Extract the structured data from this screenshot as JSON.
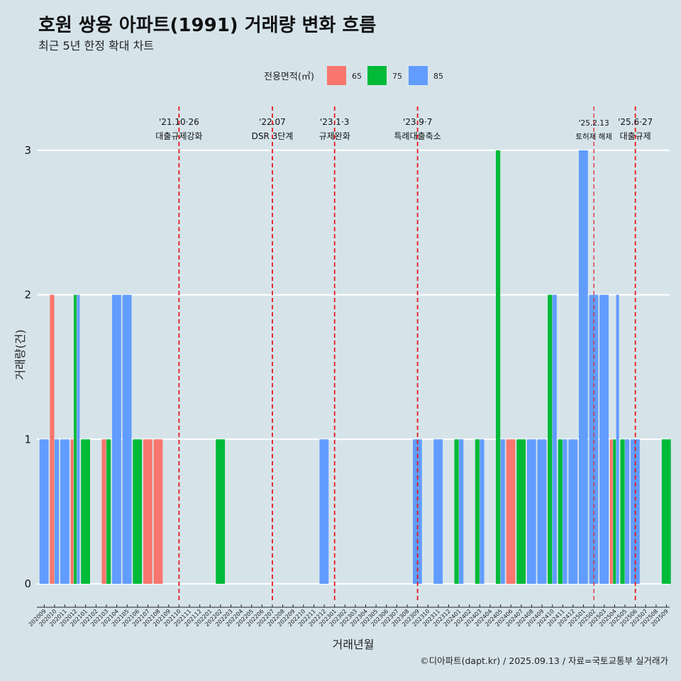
{
  "chart_data": {
    "type": "bar",
    "title": "호원 쌍용 아파트(1991) 거래량 변화 흐름",
    "subtitle": "최근 5년 한정 확대 차트",
    "xlabel": "거래년월",
    "ylabel": "거래량(건)",
    "ylim": [
      0,
      3
    ],
    "yticks": [
      0,
      1,
      2,
      3
    ],
    "grid": "horizontal",
    "legend": {
      "title": "전용면적(㎡)",
      "placement": "top",
      "entries": [
        {
          "label": "65",
          "color": "#f8766d"
        },
        {
          "label": "75",
          "color": "#00ba38"
        },
        {
          "label": "85",
          "color": "#619cff"
        }
      ]
    },
    "categories": [
      "202009",
      "202010",
      "202011",
      "202012",
      "202101",
      "202102",
      "202103",
      "202104",
      "202105",
      "202106",
      "202107",
      "202108",
      "202109",
      "202110",
      "202111",
      "202112",
      "202201",
      "202202",
      "202203",
      "202204",
      "202205",
      "202206",
      "202207",
      "202208",
      "202209",
      "202210",
      "202211",
      "202212",
      "202301",
      "202302",
      "202303",
      "202304",
      "202305",
      "202306",
      "202307",
      "202308",
      "202309",
      "202310",
      "202311",
      "202312",
      "202401",
      "202402",
      "202403",
      "202404",
      "202405",
      "202406",
      "202407",
      "202408",
      "202409",
      "202410",
      "202411",
      "202412",
      "202501",
      "202502",
      "202503",
      "202504",
      "202505",
      "202506",
      "202507",
      "202508",
      "202509"
    ],
    "bars": [
      {
        "month": "202009",
        "area": "85",
        "value": 1
      },
      {
        "month": "202010",
        "area": "65",
        "value": 2
      },
      {
        "month": "202010",
        "area": "85",
        "value": 1
      },
      {
        "month": "202011",
        "area": "85",
        "value": 1
      },
      {
        "month": "202012",
        "area": "65",
        "value": 1
      },
      {
        "month": "202012",
        "area": "75",
        "value": 2
      },
      {
        "month": "202012",
        "area": "85",
        "value": 2
      },
      {
        "month": "202101",
        "area": "75",
        "value": 1
      },
      {
        "month": "202103",
        "area": "65",
        "value": 1
      },
      {
        "month": "202103",
        "area": "75",
        "value": 1
      },
      {
        "month": "202104",
        "area": "85",
        "value": 2
      },
      {
        "month": "202105",
        "area": "85",
        "value": 2
      },
      {
        "month": "202106",
        "area": "75",
        "value": 1
      },
      {
        "month": "202107",
        "area": "65",
        "value": 1
      },
      {
        "month": "202108",
        "area": "65",
        "value": 1
      },
      {
        "month": "202202",
        "area": "75",
        "value": 1
      },
      {
        "month": "202212",
        "area": "85",
        "value": 1
      },
      {
        "month": "202309",
        "area": "85",
        "value": 1
      },
      {
        "month": "202311",
        "area": "85",
        "value": 1
      },
      {
        "month": "202401",
        "area": "75",
        "value": 1
      },
      {
        "month": "202401",
        "area": "85",
        "value": 1
      },
      {
        "month": "202403",
        "area": "75",
        "value": 1
      },
      {
        "month": "202403",
        "area": "85",
        "value": 1
      },
      {
        "month": "202405",
        "area": "75",
        "value": 3
      },
      {
        "month": "202405",
        "area": "85",
        "value": 1
      },
      {
        "month": "202406",
        "area": "65",
        "value": 1
      },
      {
        "month": "202407",
        "area": "75",
        "value": 1
      },
      {
        "month": "202408",
        "area": "85",
        "value": 1
      },
      {
        "month": "202409",
        "area": "85",
        "value": 1
      },
      {
        "month": "202410",
        "area": "75",
        "value": 2
      },
      {
        "month": "202410",
        "area": "85",
        "value": 2
      },
      {
        "month": "202411",
        "area": "75",
        "value": 1
      },
      {
        "month": "202411",
        "area": "85",
        "value": 1
      },
      {
        "month": "202412",
        "area": "85",
        "value": 1
      },
      {
        "month": "202501",
        "area": "85",
        "value": 3
      },
      {
        "month": "202502",
        "area": "85",
        "value": 2
      },
      {
        "month": "202503",
        "area": "85",
        "value": 2
      },
      {
        "month": "202504",
        "area": "65",
        "value": 1
      },
      {
        "month": "202504",
        "area": "75",
        "value": 1
      },
      {
        "month": "202504",
        "area": "85",
        "value": 2
      },
      {
        "month": "202505",
        "area": "75",
        "value": 1
      },
      {
        "month": "202505",
        "area": "85",
        "value": 1
      },
      {
        "month": "202506",
        "area": "85",
        "value": 1
      },
      {
        "month": "202509",
        "area": "75",
        "value": 1
      }
    ],
    "events": [
      {
        "date_label": "'21.10·26",
        "text": "대출규제강화",
        "month": "202110"
      },
      {
        "date_label": "'22.07",
        "text": "DSR 3단계",
        "month": "202207"
      },
      {
        "date_label": "'23.1·3",
        "text": "규제완화",
        "month": "202301"
      },
      {
        "date_label": "'23.9·7",
        "text": "특례대출축소",
        "month": "202309"
      },
      {
        "date_label": "'25.2.13",
        "text": "토허제 해제",
        "month": "202502"
      },
      {
        "date_label": "'25.6·27",
        "text": "대출규제",
        "month": "202506"
      }
    ],
    "caption": "©디아파트(dapt.kr) / 2025.09.13 / 자료=국토교통부 실거래가"
  }
}
